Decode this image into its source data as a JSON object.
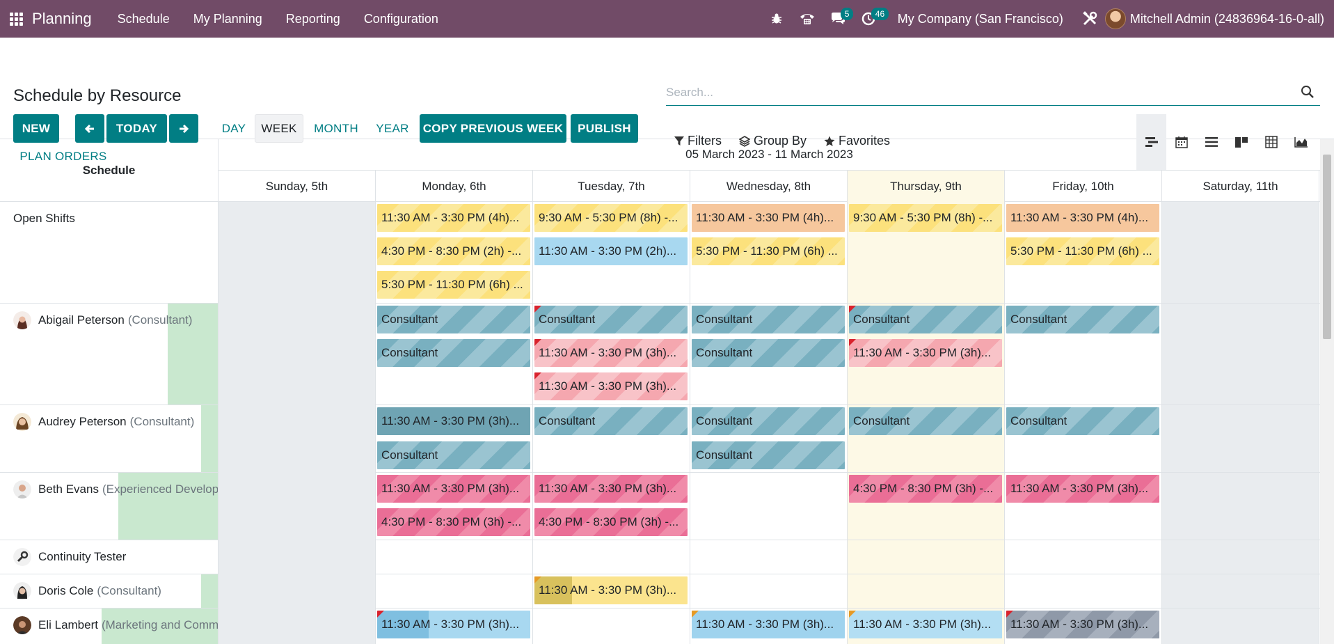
{
  "navbar": {
    "brand": "Planning",
    "menu": [
      "Schedule",
      "My Planning",
      "Reporting",
      "Configuration"
    ],
    "chat_badge": "5",
    "activity_badge": "46",
    "company": "My Company (San Francisco)",
    "user": "Mitchell Admin (24836964-16-0-all)"
  },
  "control_panel": {
    "title": "Schedule by Resource",
    "new": "NEW",
    "today": "TODAY",
    "scales": [
      "DAY",
      "WEEK",
      "MONTH",
      "YEAR"
    ],
    "active_scale": "WEEK",
    "copy_previous_week": "COPY PREVIOUS WEEK",
    "publish": "PUBLISH",
    "plan_orders": "PLAN ORDERS",
    "search_placeholder": "Search...",
    "filters": "Filters",
    "group_by": "Group By",
    "favorites": "Favorites",
    "views": [
      "gantt",
      "calendar",
      "list",
      "kanban",
      "pivot",
      "graph"
    ],
    "active_view": "gantt"
  },
  "gantt": {
    "title": "Schedule",
    "range": "05 March 2023 - 11 March 2023",
    "days": [
      "Sunday, 5th",
      "Monday, 6th",
      "Tuesday, 7th",
      "Wednesday, 8th",
      "Thursday, 9th",
      "Friday, 10th",
      "Saturday, 11th"
    ],
    "rows": [
      {
        "name": "Open Shifts",
        "role": ""
      },
      {
        "name": "Abigail Peterson",
        "role": "(Consultant)"
      },
      {
        "name": "Audrey Peterson",
        "role": "(Consultant)"
      },
      {
        "name": "Beth Evans",
        "role": "(Experienced Developer)"
      },
      {
        "name": "Continuity Tester",
        "role": ""
      },
      {
        "name": "Doris Cole",
        "role": "(Consultant)"
      },
      {
        "name": "Eli Lambert",
        "role": "(Marketing and Community Manager)"
      }
    ],
    "pills": {
      "open": {
        "mon": [
          "11:30 AM - 3:30 PM (4h)...",
          "4:30 PM - 8:30 PM (2h) -...",
          "5:30 PM - 11:30 PM (6h) ..."
        ],
        "tue": [
          "9:30 AM - 5:30 PM (8h) -...",
          "11:30 AM - 3:30 PM (2h)..."
        ],
        "wed": [
          "11:30 AM - 3:30 PM (4h)...",
          "5:30 PM - 11:30 PM (6h) ..."
        ],
        "thu": [
          "9:30 AM - 5:30 PM (8h) -..."
        ],
        "fri": [
          "11:30 AM - 3:30 PM (4h)...",
          "5:30 PM - 11:30 PM (6h) ..."
        ]
      },
      "abigail": {
        "mon": [
          "Consultant",
          "Consultant"
        ],
        "tue": [
          "Consultant",
          "11:30 AM - 3:30 PM (3h)...",
          "11:30 AM - 3:30 PM (3h)..."
        ],
        "wed": [
          "Consultant",
          "Consultant"
        ],
        "thu": [
          "Consultant",
          "11:30 AM - 3:30 PM (3h)..."
        ],
        "fri": [
          "Consultant"
        ]
      },
      "audrey": {
        "mon": [
          "11:30 AM - 3:30 PM (3h)...",
          "Consultant"
        ],
        "tue": [
          "Consultant"
        ],
        "wed": [
          "Consultant",
          "Consultant"
        ],
        "thu": [
          "Consultant"
        ],
        "fri": [
          "Consultant"
        ]
      },
      "beth": {
        "mon": [
          "11:30 AM - 3:30 PM (3h)...",
          "4:30 PM - 8:30 PM (3h) -..."
        ],
        "tue": [
          "11:30 AM - 3:30 PM (3h)...",
          "4:30 PM - 8:30 PM (3h) -..."
        ],
        "thu": [
          "4:30 PM - 8:30 PM (3h) -..."
        ],
        "fri": [
          "11:30 AM - 3:30 PM (3h)..."
        ]
      },
      "doris": {
        "tue": [
          "11:30 AM - 3:30 PM (3h)..."
        ]
      },
      "eli": {
        "mon": [
          "11:30 AM - 3:30 PM (3h)..."
        ],
        "wed": [
          "11:30 AM - 3:30 PM (3h)..."
        ],
        "thu": [
          "11:30 AM - 3:30 PM (3h)..."
        ],
        "fri": [
          "11:30 AM - 3:30 PM (3h)..."
        ]
      }
    }
  }
}
